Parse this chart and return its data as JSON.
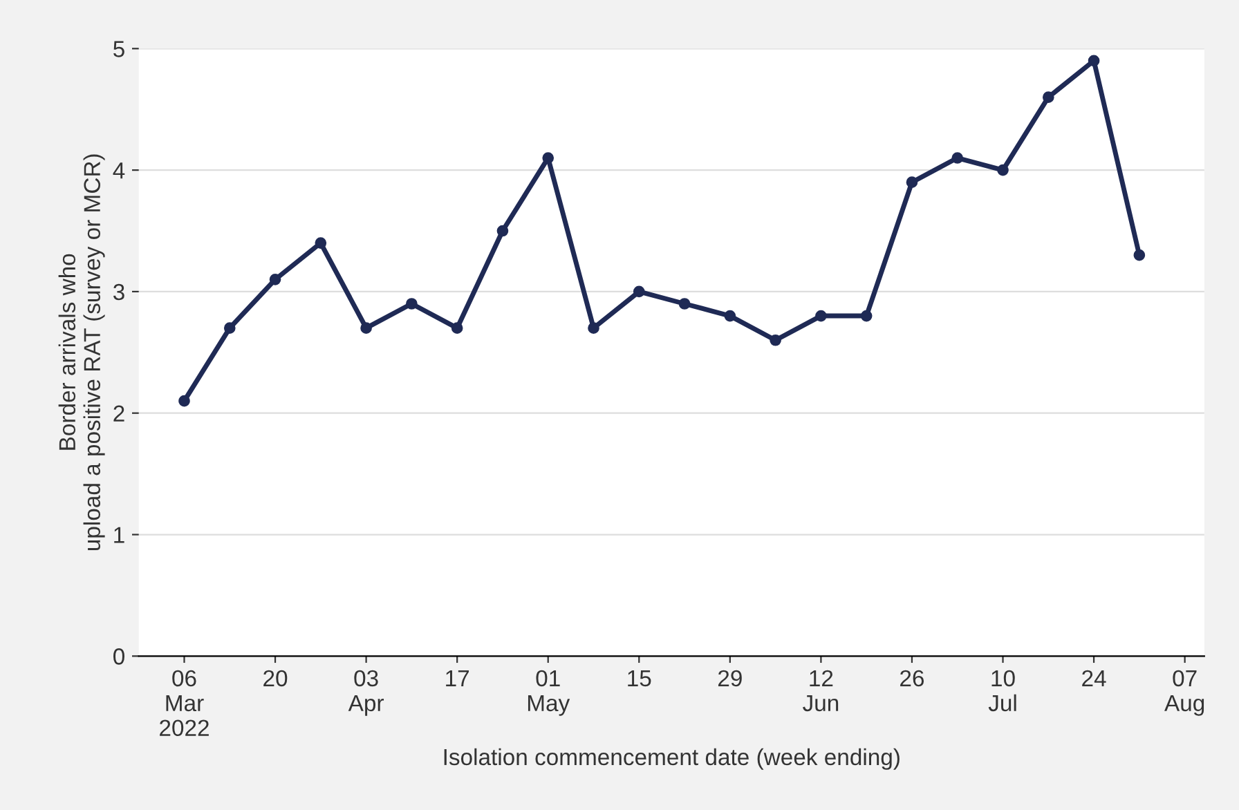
{
  "chart_data": {
    "type": "line",
    "xlabel": "Isolation commencement date (week ending)",
    "ylabel": "Border arrivals who\nupload a positive RAT (survey or MCR)",
    "x": [
      "2022-03-06",
      "2022-03-13",
      "2022-03-20",
      "2022-03-27",
      "2022-04-03",
      "2022-04-10",
      "2022-04-17",
      "2022-04-24",
      "2022-05-01",
      "2022-05-08",
      "2022-05-15",
      "2022-05-22",
      "2022-05-29",
      "2022-06-05",
      "2022-06-12",
      "2022-06-19",
      "2022-06-26",
      "2022-07-03",
      "2022-07-10",
      "2022-07-17",
      "2022-07-24",
      "2022-07-31"
    ],
    "series": [
      {
        "color": "#1f2a55",
        "values": [
          2.1,
          2.7,
          3.1,
          3.4,
          2.7,
          2.9,
          2.7,
          3.5,
          4.1,
          2.7,
          3.0,
          2.9,
          2.8,
          2.6,
          2.8,
          2.8,
          3.9,
          4.1,
          4.0,
          4.6,
          4.9,
          3.3
        ]
      }
    ],
    "xlim": [
      "2022-02-27",
      "2022-08-10"
    ],
    "xticks": [
      {
        "value": "2022-03-06",
        "label": "06\nMar\n2022"
      },
      {
        "value": "2022-03-20",
        "label": "20"
      },
      {
        "value": "2022-04-03",
        "label": "03\nApr"
      },
      {
        "value": "2022-04-17",
        "label": "17"
      },
      {
        "value": "2022-05-01",
        "label": "01\nMay"
      },
      {
        "value": "2022-05-15",
        "label": "15"
      },
      {
        "value": "2022-05-29",
        "label": "29"
      },
      {
        "value": "2022-06-12",
        "label": "12\nJun"
      },
      {
        "value": "2022-06-26",
        "label": "26"
      },
      {
        "value": "2022-07-10",
        "label": "10\nJul"
      },
      {
        "value": "2022-07-24",
        "label": "24"
      },
      {
        "value": "2022-08-07",
        "label": "07\nAug"
      }
    ],
    "ylim": [
      0,
      5
    ],
    "yticks": [
      0,
      1,
      2,
      3,
      4,
      5
    ],
    "grid": "y",
    "marker": "circle",
    "line_style": "solid",
    "legend": false
  }
}
